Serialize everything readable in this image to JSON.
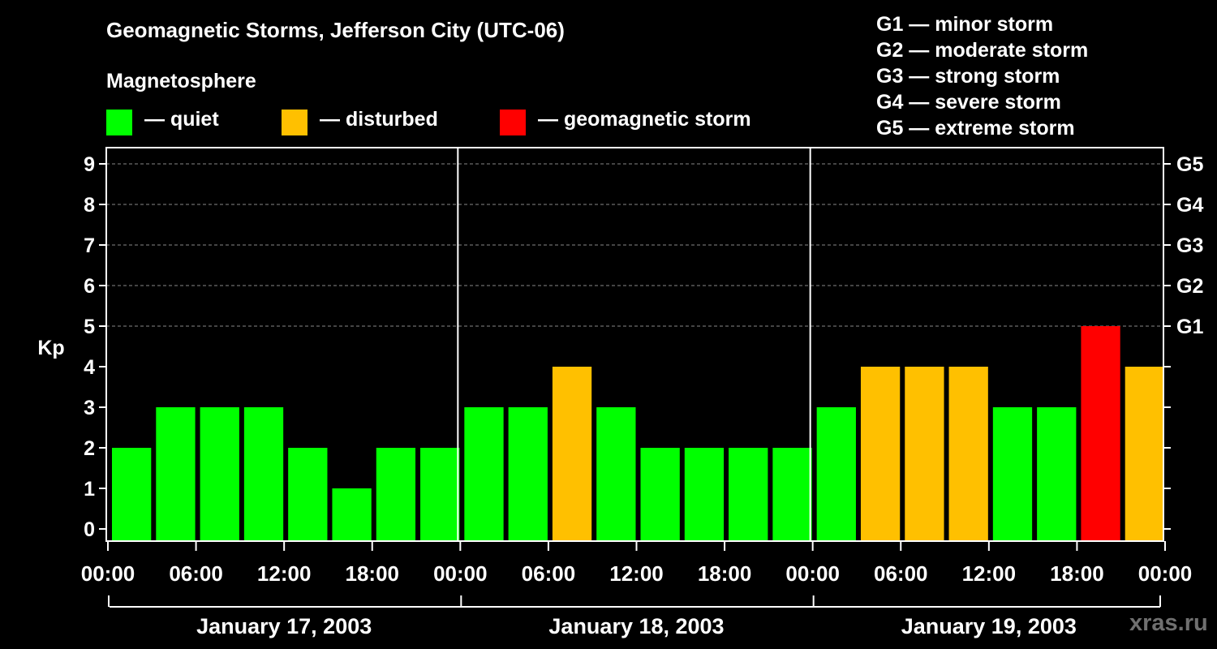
{
  "title": "Geomagnetic Storms, Jefferson City (UTC-06)",
  "subtitle": "Magnetosphere",
  "legend": [
    {
      "label": "— quiet",
      "color": "#00ff00"
    },
    {
      "label": "— disturbed",
      "color": "#ffc000"
    },
    {
      "label": "— geomagnetic storm",
      "color": "#ff0000"
    }
  ],
  "storm_scale": [
    "G1 — minor storm",
    "G2 — moderate storm",
    "G3 — strong storm",
    "G4 — severe storm",
    "G5 — extreme storm"
  ],
  "watermark": "xras.ru",
  "chart_data": {
    "type": "bar",
    "title": "Geomagnetic Storms, Jefferson City (UTC-06)",
    "ylabel": "Kp",
    "ylim": [
      0,
      9
    ],
    "yticks": [
      "0",
      "1",
      "2",
      "3",
      "4",
      "5",
      "6",
      "7",
      "8",
      "9"
    ],
    "right_ticks": [
      {
        "kp": 5,
        "label": "G1"
      },
      {
        "kp": 6,
        "label": "G2"
      },
      {
        "kp": 7,
        "label": "G3"
      },
      {
        "kp": 8,
        "label": "G4"
      },
      {
        "kp": 9,
        "label": "G5"
      }
    ],
    "grid": true,
    "xtick_labels": [
      "00:00",
      "06:00",
      "12:00",
      "18:00",
      "00:00",
      "06:00",
      "12:00",
      "18:00",
      "00:00",
      "06:00",
      "12:00",
      "18:00",
      "00:00"
    ],
    "days": [
      "January 17, 2003",
      "January 18, 2003",
      "January 19, 2003"
    ],
    "values": [
      2,
      3,
      3,
      3,
      2,
      1,
      2,
      2,
      3,
      3,
      4,
      3,
      2,
      2,
      2,
      2,
      3,
      4,
      4,
      4,
      3,
      3,
      5,
      4
    ],
    "colors": {
      "quiet": "#00ff00",
      "disturbed": "#ffc000",
      "storm": "#ff0000"
    }
  }
}
